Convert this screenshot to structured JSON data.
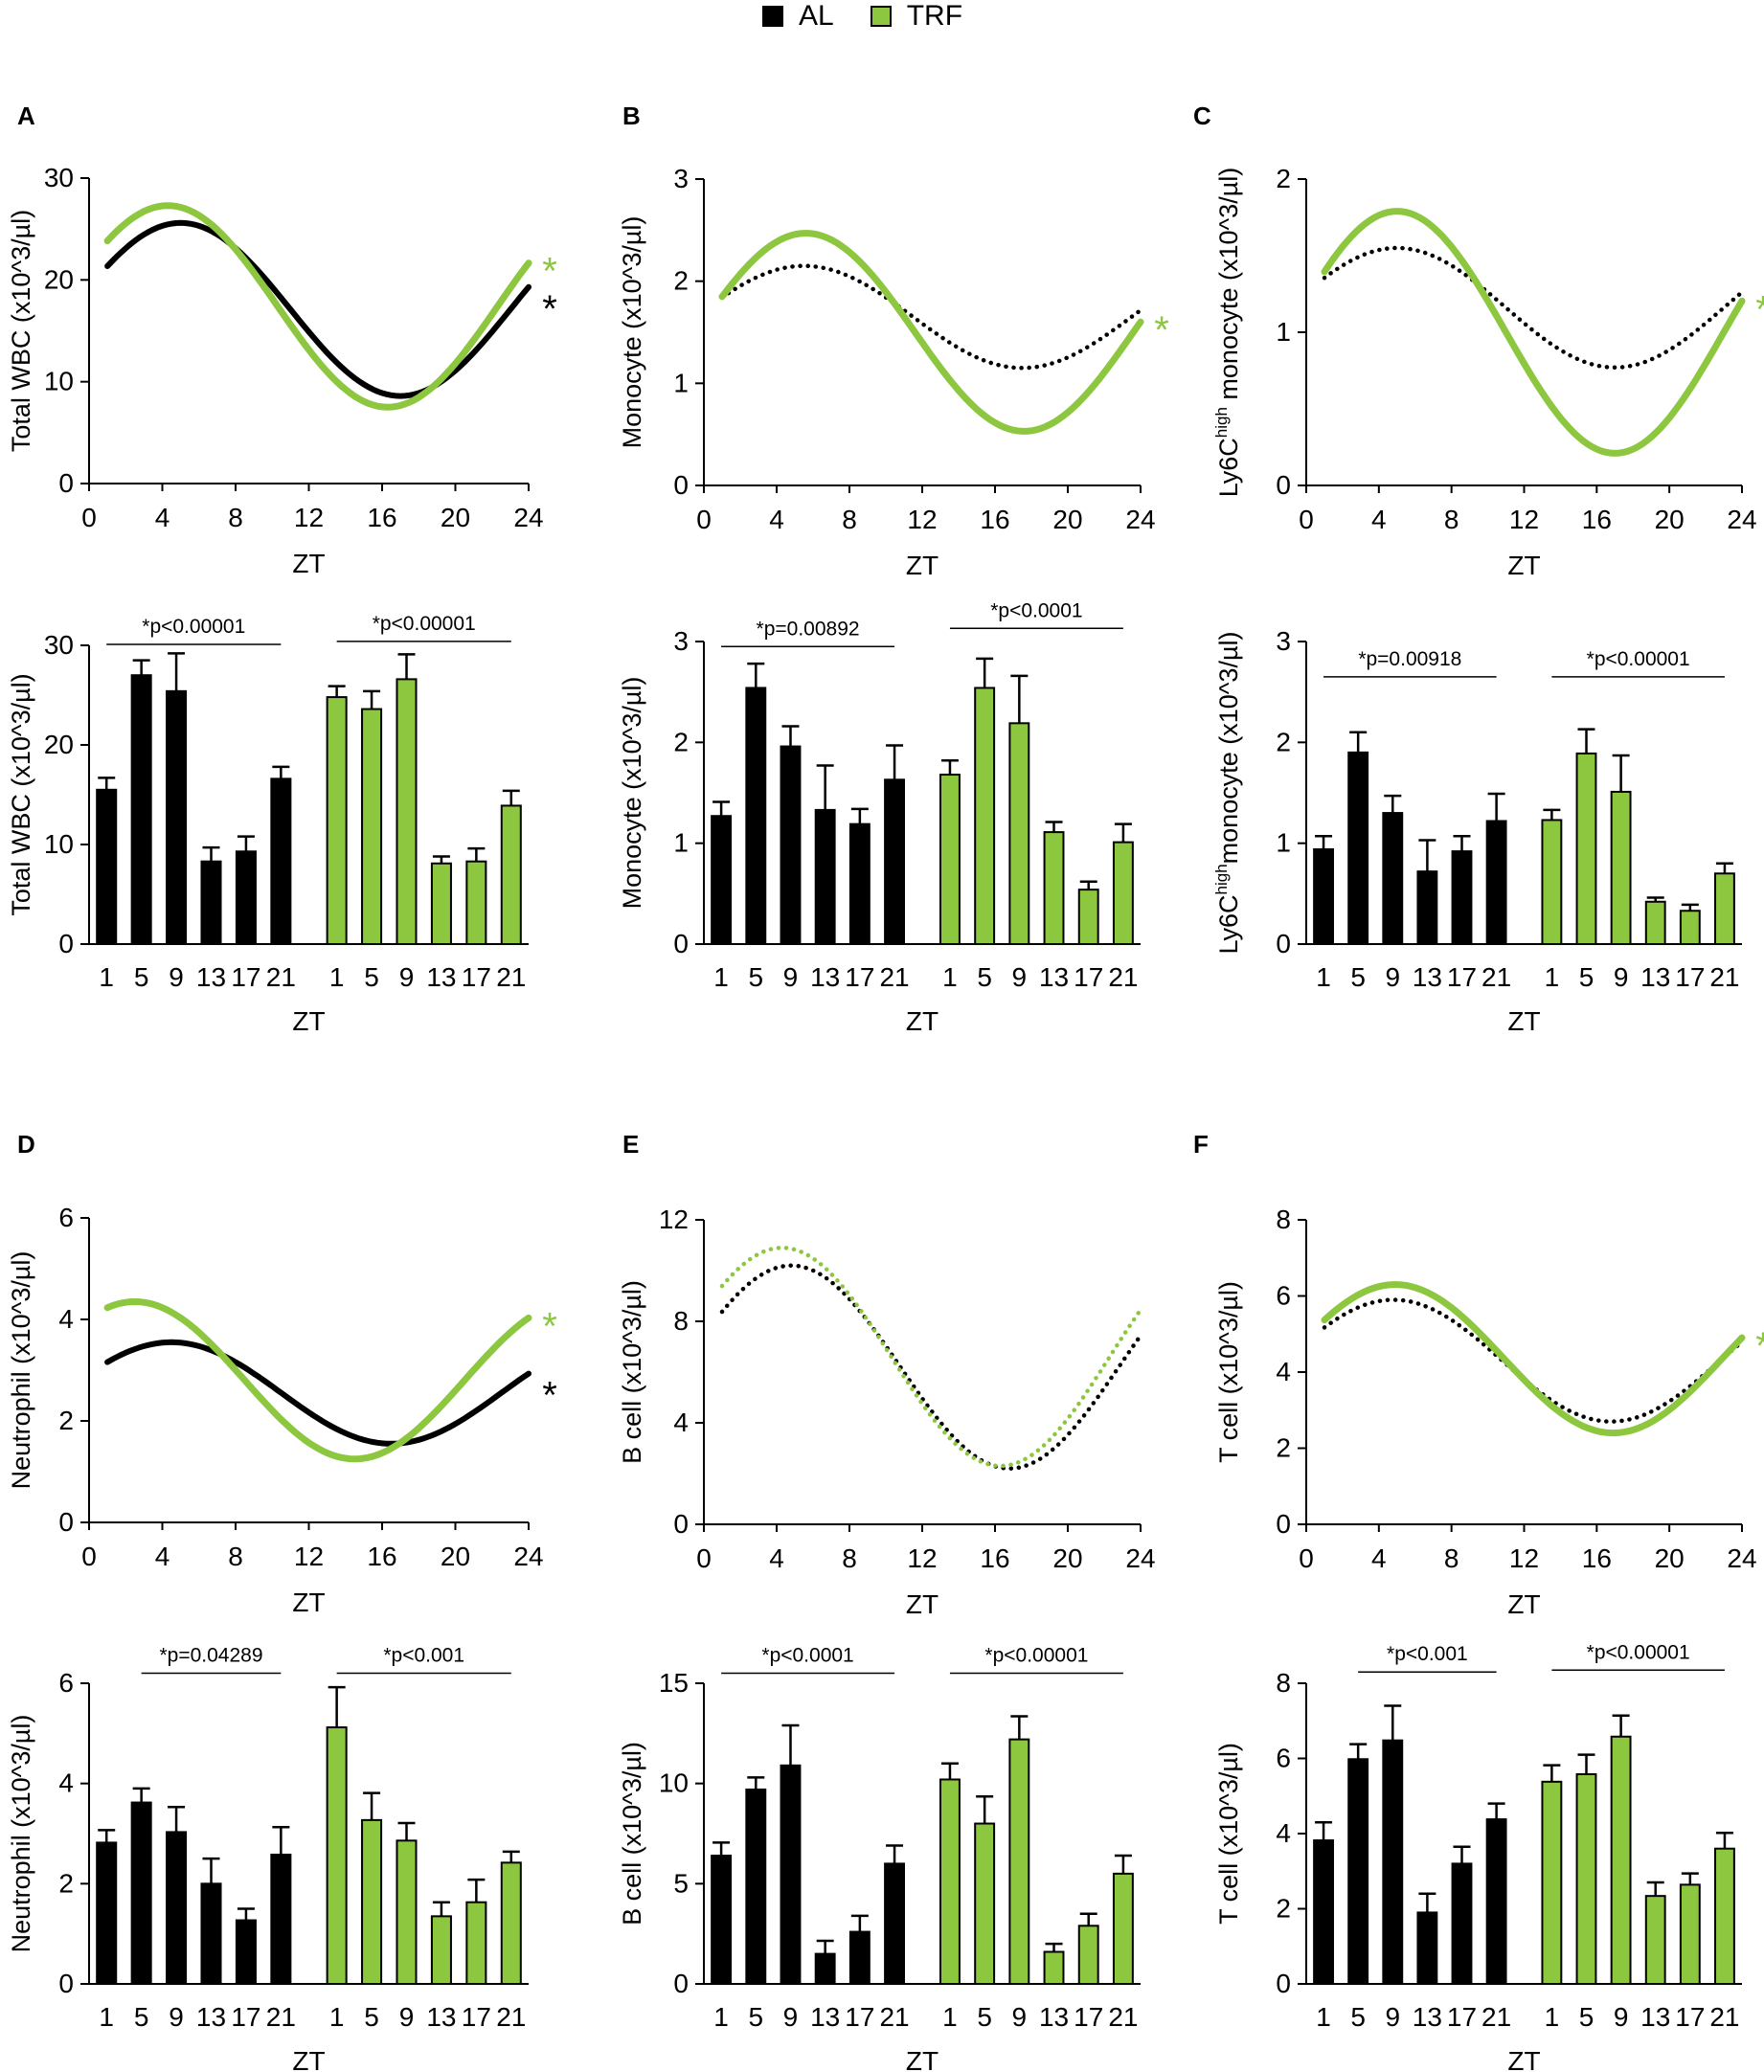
{
  "legend": {
    "al_label": "AL",
    "trf_label": "TRF"
  },
  "colors": {
    "al": "#000000",
    "trf": "#8dc63f"
  },
  "chart_data": [
    {
      "panel": "A",
      "type": "line",
      "title": "",
      "ylabel": "Total WBC (x10^3/µl)",
      "xlabel": "ZT",
      "xlim": [
        0,
        24
      ],
      "xticks": [
        0,
        4,
        8,
        12,
        16,
        20,
        24
      ],
      "ylim": [
        0,
        30
      ],
      "yticks": [
        0,
        10,
        20,
        30
      ],
      "series": [
        {
          "name": "AL",
          "style": "solid",
          "mesor": 17.1,
          "amplitude": 8.5,
          "peak": 5,
          "sig": "*"
        },
        {
          "name": "TRF",
          "style": "solid",
          "mesor": 17.4,
          "amplitude": 9.9,
          "peak": 4.3,
          "sig": "*"
        }
      ]
    },
    {
      "panel": "B",
      "type": "line",
      "title": "",
      "ylabel": "Monocyte (x10^3/µl)",
      "xlabel": "ZT",
      "xlim": [
        0,
        24
      ],
      "xticks": [
        0,
        4,
        8,
        12,
        16,
        20,
        24
      ],
      "ylim": [
        0,
        3
      ],
      "yticks": [
        0,
        1,
        2,
        3
      ],
      "series": [
        {
          "name": "AL",
          "style": "dotted",
          "mesor": 1.65,
          "amplitude": 0.5,
          "peak": 5.5,
          "sig": ""
        },
        {
          "name": "TRF",
          "style": "solid",
          "mesor": 1.5,
          "amplitude": 0.97,
          "peak": 5.6,
          "sig": "*"
        }
      ]
    },
    {
      "panel": "C",
      "type": "line",
      "title": "",
      "ylabel": "Ly6C^high monocyte (x10^3/µl)",
      "ylabel_main": "Ly6C",
      "ylabel_sup": "high",
      "ylabel_rest": " monocyte (x10^3/µl)",
      "xlabel": "ZT",
      "xlim": [
        0,
        24
      ],
      "xticks": [
        0,
        4,
        8,
        12,
        16,
        20,
        24
      ],
      "ylim": [
        0,
        2
      ],
      "yticks": [
        0,
        1,
        2
      ],
      "series": [
        {
          "name": "AL",
          "style": "dotted",
          "mesor": 1.16,
          "amplitude": 0.39,
          "peak": 5,
          "sig": ""
        },
        {
          "name": "TRF",
          "style": "solid",
          "mesor": 1.0,
          "amplitude": 0.79,
          "peak": 5,
          "sig": "*"
        }
      ]
    },
    {
      "panel": "A",
      "type": "bar",
      "ylabel": "Total WBC (x10^3/µl)",
      "xlabel": "ZT",
      "categories": [
        "1",
        "5",
        "9",
        "13",
        "17",
        "21"
      ],
      "ylim": [
        0,
        30
      ],
      "yticks": [
        0,
        10,
        20,
        30
      ],
      "series": [
        {
          "name": "AL",
          "values": [
            15.5,
            27,
            25.4,
            8.3,
            9.3,
            16.6
          ],
          "errors": [
            1.2,
            1.5,
            3.8,
            1.4,
            1.5,
            1.2
          ]
        },
        {
          "name": "TRF",
          "values": [
            24.8,
            23.6,
            26.6,
            8.1,
            8.3,
            13.9
          ],
          "errors": [
            1.1,
            1.8,
            2.5,
            0.7,
            1.3,
            1.5
          ]
        }
      ],
      "annotations": [
        "*p<0.00001",
        "*p<0.00001"
      ],
      "ann_y": [
        30.1,
        30.4
      ],
      "ann_span": [
        [
          1,
          6
        ],
        [
          7,
          12
        ]
      ]
    },
    {
      "panel": "B",
      "type": "bar",
      "ylabel": "Monocyte (x10^3/µl)",
      "xlabel": "ZT",
      "categories": [
        "1",
        "5",
        "9",
        "13",
        "17",
        "21"
      ],
      "ylim": [
        0,
        3
      ],
      "yticks": [
        0,
        1,
        2,
        3
      ],
      "series": [
        {
          "name": "AL",
          "values": [
            1.27,
            2.54,
            1.96,
            1.33,
            1.19,
            1.63
          ],
          "errors": [
            0.14,
            0.24,
            0.2,
            0.44,
            0.15,
            0.34
          ]
        },
        {
          "name": "TRF",
          "values": [
            1.68,
            2.54,
            2.19,
            1.11,
            0.54,
            1.01
          ],
          "errors": [
            0.14,
            0.29,
            0.47,
            0.1,
            0.08,
            0.18
          ]
        }
      ],
      "annotations": [
        "*p=0.00892",
        "*p<0.0001"
      ],
      "ann_y": [
        2.95,
        3.13
      ],
      "ann_span": [
        [
          1,
          6
        ],
        [
          7,
          12
        ]
      ]
    },
    {
      "panel": "C",
      "type": "bar",
      "ylabel": "Ly6C^high monocyte (x10^3/µl)",
      "ylabel_main": "Ly6C",
      "ylabel_sup": "high",
      "ylabel_rest": "monocyte (x10^3/µl)",
      "xlabel": "ZT",
      "categories": [
        "1",
        "5",
        "9",
        "13",
        "17",
        "21"
      ],
      "ylim": [
        0,
        3
      ],
      "yticks": [
        0,
        1,
        2,
        3
      ],
      "series": [
        {
          "name": "AL",
          "values": [
            0.94,
            1.9,
            1.3,
            0.72,
            0.92,
            1.22
          ],
          "errors": [
            0.13,
            0.2,
            0.17,
            0.31,
            0.15,
            0.27
          ]
        },
        {
          "name": "TRF",
          "values": [
            1.23,
            1.89,
            1.51,
            0.42,
            0.33,
            0.7
          ],
          "errors": [
            0.1,
            0.24,
            0.36,
            0.04,
            0.06,
            0.1
          ]
        }
      ],
      "annotations": [
        "*p=0.00918",
        "*p<0.00001"
      ],
      "ann_y": [
        2.65,
        2.65
      ],
      "ann_span": [
        [
          1,
          6
        ],
        [
          7,
          12
        ]
      ]
    },
    {
      "panel": "D",
      "type": "line",
      "title": "",
      "ylabel": "Neutrophil (x10^3/µl)",
      "xlabel": "ZT",
      "xlim": [
        0,
        24
      ],
      "xticks": [
        0,
        4,
        8,
        12,
        16,
        20,
        24
      ],
      "ylim": [
        0,
        6
      ],
      "yticks": [
        0,
        2,
        4,
        6
      ],
      "series": [
        {
          "name": "AL",
          "style": "solid",
          "mesor": 2.55,
          "amplitude": 1.0,
          "peak": 4.5,
          "sig": "*"
        },
        {
          "name": "TRF",
          "style": "solid",
          "mesor": 2.8,
          "amplitude": 1.55,
          "peak": 2.5,
          "sig": "*"
        }
      ]
    },
    {
      "panel": "E",
      "type": "line",
      "title": "",
      "ylabel": "B cell (x10^3/µl)",
      "xlabel": "ZT",
      "xlim": [
        0,
        24
      ],
      "xticks": [
        0,
        4,
        8,
        12,
        16,
        20,
        24
      ],
      "ylim": [
        0,
        12
      ],
      "yticks": [
        0,
        4,
        8,
        12
      ],
      "series": [
        {
          "name": "AL",
          "style": "dotted",
          "mesor": 6.2,
          "amplitude": 4.0,
          "peak": 4.8,
          "sig": ""
        },
        {
          "name": "TRF",
          "style": "dotted",
          "mesor": 6.6,
          "amplitude": 4.3,
          "peak": 4.3,
          "sig": ""
        }
      ]
    },
    {
      "panel": "F",
      "type": "line",
      "title": "",
      "ylabel": "T cell (x10^3/µl)",
      "xlabel": "ZT",
      "xlim": [
        0,
        24
      ],
      "xticks": [
        0,
        4,
        8,
        12,
        16,
        20,
        24
      ],
      "ylim": [
        0,
        8
      ],
      "yticks": [
        0,
        2,
        4,
        6,
        8
      ],
      "series": [
        {
          "name": "AL",
          "style": "dotted",
          "mesor": 4.3,
          "amplitude": 1.6,
          "peak": 4.8,
          "sig": ""
        },
        {
          "name": "TRF",
          "style": "solid",
          "mesor": 4.35,
          "amplitude": 1.95,
          "peak": 4.9,
          "sig": "*"
        }
      ]
    },
    {
      "panel": "D",
      "type": "bar",
      "ylabel": "Neutrophil (x10^3/µl)",
      "xlabel": "ZT",
      "categories": [
        "1",
        "5",
        "9",
        "13",
        "17",
        "21"
      ],
      "ylim": [
        0,
        6
      ],
      "yticks": [
        0,
        2,
        4,
        6
      ],
      "series": [
        {
          "name": "AL",
          "values": [
            2.82,
            3.62,
            3.03,
            2.0,
            1.27,
            2.58
          ],
          "errors": [
            0.25,
            0.28,
            0.5,
            0.5,
            0.23,
            0.55
          ]
        },
        {
          "name": "TRF",
          "values": [
            5.12,
            3.27,
            2.86,
            1.35,
            1.63,
            2.42
          ],
          "errors": [
            0.8,
            0.54,
            0.35,
            0.28,
            0.45,
            0.22
          ]
        }
      ],
      "annotations": [
        "*p=0.04289",
        "*p<0.001"
      ],
      "ann_y": [
        6.2,
        6.2
      ],
      "ann_span": [
        [
          2,
          6
        ],
        [
          7,
          12
        ]
      ]
    },
    {
      "panel": "E",
      "type": "bar",
      "ylabel": "B cell (x10^3/µl)",
      "xlabel": "ZT",
      "categories": [
        "1",
        "5",
        "9",
        "13",
        "17",
        "21"
      ],
      "ylim": [
        0,
        15
      ],
      "yticks": [
        0,
        5,
        10,
        15
      ],
      "series": [
        {
          "name": "AL",
          "values": [
            6.4,
            9.7,
            10.9,
            1.5,
            2.6,
            6.0
          ],
          "errors": [
            0.65,
            0.6,
            2.0,
            0.65,
            0.8,
            0.9
          ]
        },
        {
          "name": "TRF",
          "values": [
            10.2,
            8.0,
            12.2,
            1.6,
            2.9,
            5.5
          ],
          "errors": [
            0.8,
            1.35,
            1.15,
            0.4,
            0.6,
            0.9
          ]
        }
      ],
      "annotations": [
        "*p<0.0001",
        "*p<0.00001"
      ],
      "ann_y": [
        15.5,
        15.5
      ],
      "ann_span": [
        [
          1,
          6
        ],
        [
          7,
          12
        ]
      ]
    },
    {
      "panel": "F",
      "type": "bar",
      "ylabel": "T cell (x10^3/µl)",
      "xlabel": "ZT",
      "categories": [
        "1",
        "5",
        "9",
        "13",
        "17",
        "21"
      ],
      "ylim": [
        0,
        8
      ],
      "yticks": [
        0,
        2,
        4,
        6,
        8
      ],
      "series": [
        {
          "name": "AL",
          "values": [
            3.82,
            5.98,
            6.48,
            1.9,
            3.2,
            4.38
          ],
          "errors": [
            0.48,
            0.4,
            0.92,
            0.5,
            0.45,
            0.42
          ]
        },
        {
          "name": "TRF",
          "values": [
            5.38,
            5.58,
            6.58,
            2.34,
            2.64,
            3.6
          ],
          "errors": [
            0.44,
            0.52,
            0.56,
            0.36,
            0.3,
            0.42
          ]
        }
      ],
      "annotations": [
        "*p<0.001",
        "*p<0.00001"
      ],
      "ann_y": [
        8.3,
        8.35
      ],
      "ann_span": [
        [
          2,
          6
        ],
        [
          7,
          12
        ]
      ]
    }
  ]
}
